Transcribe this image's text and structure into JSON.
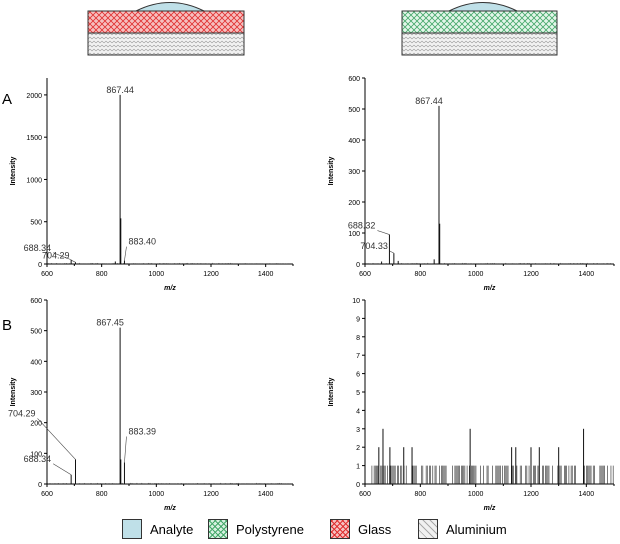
{
  "panel_labels": {
    "a": "A",
    "b": "B"
  },
  "colors": {
    "analyte": "#bfe0e8",
    "polystyrene": "#d6f0e0",
    "glass": "#f2a8a8",
    "aluminium": "#e8e8e8"
  },
  "legend": [
    {
      "label": "Analyte",
      "color": "#bfe0e8"
    },
    {
      "label": "Polystyrene",
      "color": "#d6f0e0"
    },
    {
      "label": "Glass",
      "color": "#f2a8a8"
    },
    {
      "label": "Aluminium",
      "color": "#e8e8e8"
    }
  ],
  "chart_data": [
    {
      "type": "bar",
      "panel": "A-left",
      "xlabel": "m/z",
      "ylabel": "Intensity",
      "xlim": [
        600,
        1500
      ],
      "ylim": [
        0,
        2200
      ],
      "xticks": [
        600,
        800,
        1000,
        1200,
        1400
      ],
      "yticks": [
        0,
        500,
        1000,
        1500,
        2000
      ],
      "peaks": [
        [
          688.34,
          50
        ],
        [
          704.29,
          20
        ],
        [
          850,
          30
        ],
        [
          867.44,
          2000
        ],
        [
          870,
          540
        ],
        [
          883.4,
          40
        ]
      ],
      "annotations": [
        {
          "text": "867.44",
          "x": 867.44,
          "y": 2000
        },
        {
          "text": "688.34",
          "x": 688.34,
          "y": 50
        },
        {
          "text": "704.29",
          "x": 704.29,
          "y": 20
        },
        {
          "text": "883.40",
          "x": 883.4,
          "y": 40
        }
      ]
    },
    {
      "type": "bar",
      "panel": "A-right",
      "xlabel": "m/z",
      "ylabel": "Intensity",
      "xlim": [
        600,
        1500
      ],
      "ylim": [
        0,
        600
      ],
      "xticks": [
        600,
        800,
        1000,
        1200,
        1400
      ],
      "yticks": [
        0,
        100,
        200,
        300,
        400,
        500,
        600
      ],
      "peaks": [
        [
          660,
          8
        ],
        [
          688.32,
          95
        ],
        [
          704.33,
          35
        ],
        [
          720,
          10
        ],
        [
          850,
          15
        ],
        [
          867.44,
          510
        ],
        [
          870,
          130
        ]
      ],
      "annotations": [
        {
          "text": "867.44",
          "x": 867.44,
          "y": 510
        },
        {
          "text": "688.32",
          "x": 688.32,
          "y": 95
        },
        {
          "text": "704.33",
          "x": 704.33,
          "y": 35
        }
      ]
    },
    {
      "type": "bar",
      "panel": "B-left",
      "xlabel": "m/z",
      "ylabel": "Intensity",
      "xlim": [
        600,
        1500
      ],
      "ylim": [
        0,
        600
      ],
      "xticks": [
        600,
        800,
        1000,
        1200,
        1400
      ],
      "yticks": [
        0,
        100,
        200,
        300,
        400,
        500,
        600
      ],
      "peaks": [
        [
          688.34,
          30
        ],
        [
          704.29,
          80
        ],
        [
          867.45,
          510
        ],
        [
          870,
          80
        ],
        [
          883.39,
          70
        ]
      ],
      "annotations": [
        {
          "text": "867.45",
          "x": 867.45,
          "y": 510
        },
        {
          "text": "688.34",
          "x": 688.34,
          "y": 30
        },
        {
          "text": "704.29",
          "x": 704.29,
          "y": 80
        },
        {
          "text": "883.39",
          "x": 883.39,
          "y": 70
        }
      ]
    },
    {
      "type": "bar",
      "panel": "B-right",
      "xlabel": "m/z",
      "ylabel": "Intensity",
      "xlim": [
        600,
        1500
      ],
      "ylim": [
        0,
        10
      ],
      "xticks": [
        600,
        800,
        1000,
        1200,
        1400
      ],
      "yticks": [
        0,
        1,
        2,
        3,
        4,
        5,
        6,
        7,
        8,
        9,
        10
      ],
      "peaks": [
        [
          650,
          2
        ],
        [
          665,
          3
        ],
        [
          690,
          2
        ],
        [
          740,
          2
        ],
        [
          770,
          2
        ],
        [
          980,
          3
        ],
        [
          1130,
          2
        ],
        [
          1145,
          2
        ],
        [
          1200,
          2
        ],
        [
          1230,
          2
        ],
        [
          1300,
          2
        ],
        [
          1390,
          3
        ]
      ],
      "noise_level": 1
    }
  ]
}
